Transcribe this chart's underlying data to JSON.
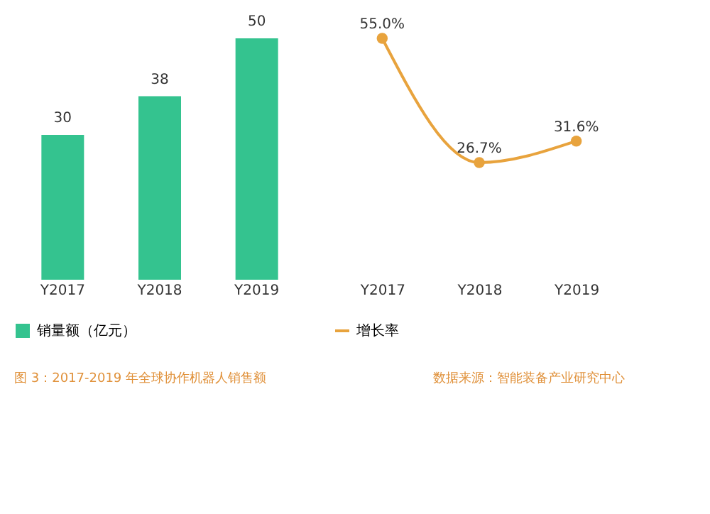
{
  "chart_data": [
    {
      "type": "bar",
      "categories": [
        "Y2017",
        "Y2018",
        "Y2019"
      ],
      "series": [
        {
          "name": "销量额（亿元）",
          "color": "#34c38f",
          "values": [
            30,
            38,
            50
          ]
        }
      ],
      "data_labels": true,
      "legend": "bottom",
      "annotations": [
        "图 3：2017-2019 年全球协作机器人销售额"
      ]
    },
    {
      "type": "line",
      "categories": [
        "Y2017",
        "Y2018",
        "Y2019"
      ],
      "series": [
        {
          "name": "增长率",
          "color": "#e8a33d",
          "values": [
            55.0,
            26.7,
            31.6
          ],
          "value_labels": [
            "55.0%",
            "26.7%",
            "31.6%"
          ]
        }
      ],
      "marker": "circle",
      "legend": "bottom",
      "annotations": [
        "数据来源：智能装备产业研究中心"
      ]
    }
  ]
}
